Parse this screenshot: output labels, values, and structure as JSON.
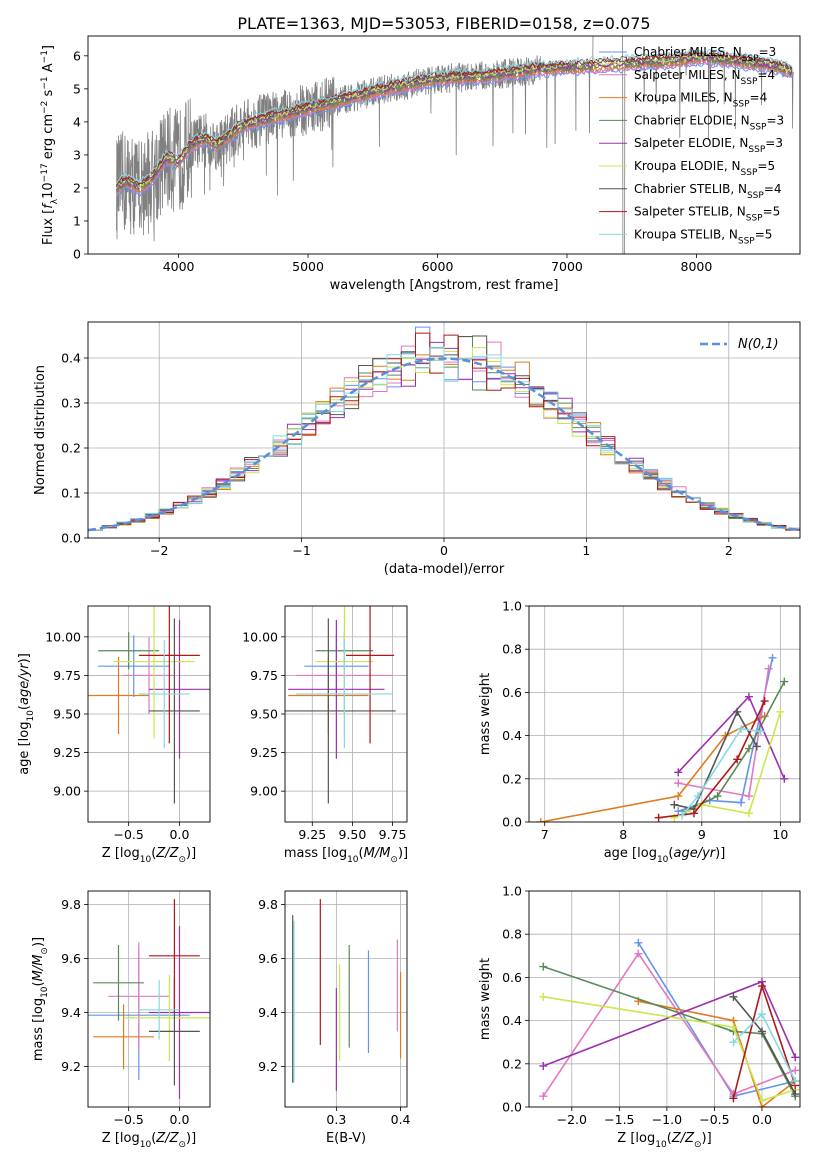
{
  "figure_title": "PLATE=1363, MJD=53053, FIBERID=0158, z=0.075",
  "colors": {
    "Chabrier MILES": "#6495ed",
    "Salpeter MILES": "#e377c2",
    "Kroupa MILES": "#e07b20",
    "Chabrier ELODIE": "#5a8a5a",
    "Salpeter ELODIE": "#9b30b0",
    "Kroupa ELODIE": "#c8e84c",
    "Chabrier STELIB": "#555555",
    "Salpeter STELIB": "#b01818",
    "Kroupa STELIB": "#86d9e0",
    "data": "#808080",
    "gaussian": "#5b8fd9"
  },
  "chart_data": [
    {
      "id": "spectrum",
      "type": "line",
      "title": "PLATE=1363, MJD=53053, FIBERID=0158, z=0.075",
      "xlabel": "wavelength [Angstrom, rest frame]",
      "ylabel": "Flux [f_λ10^-17 erg cm^-2 s^-1 A^-1]",
      "xlim": [
        3300,
        8800
      ],
      "ylim": [
        0,
        6.6
      ],
      "xticks": [
        "4000",
        "5000",
        "6000",
        "7000",
        "8000"
      ],
      "yticks": [
        "0",
        "1",
        "2",
        "3",
        "4",
        "5",
        "6"
      ],
      "grid": false,
      "legend_position": "upper-right",
      "legend": [
        {
          "model": "Chabrier MILES",
          "nssp": "3"
        },
        {
          "model": "Salpeter MILES",
          "nssp": "4"
        },
        {
          "model": "Kroupa MILES",
          "nssp": "4"
        },
        {
          "model": "Chabrier ELODIE",
          "nssp": "3"
        },
        {
          "model": "Salpeter ELODIE",
          "nssp": "3"
        },
        {
          "model": "Kroupa ELODIE",
          "nssp": "5"
        },
        {
          "model": "Chabrier STELIB",
          "nssp": "4"
        },
        {
          "model": "Salpeter STELIB",
          "nssp": "5"
        },
        {
          "model": "Kroupa STELIB",
          "nssp": "5"
        }
      ],
      "continuum_nodes": {
        "x": [
          3520,
          3600,
          3700,
          3800,
          3900,
          4000,
          4100,
          4200,
          4300,
          4400,
          4500,
          4600,
          4700,
          4800,
          4900,
          5000,
          5200,
          5400,
          5600,
          5800,
          6000,
          6200,
          6400,
          6600,
          6800,
          7000,
          7200,
          7400,
          7600,
          7800,
          8000,
          8200,
          8400,
          8600,
          8750
        ],
        "y": [
          2.0,
          2.2,
          2.0,
          2.3,
          2.9,
          2.8,
          3.3,
          3.5,
          3.3,
          3.6,
          3.9,
          4.0,
          4.1,
          4.2,
          4.3,
          4.4,
          4.6,
          4.8,
          5.0,
          5.15,
          5.3,
          5.35,
          5.4,
          5.5,
          5.6,
          5.65,
          5.7,
          5.75,
          5.8,
          5.85,
          5.95,
          5.9,
          5.8,
          5.7,
          5.5
        ]
      }
    },
    {
      "id": "residuals",
      "type": "area",
      "xlabel": "(data-model)/error",
      "ylabel": "Normed distribution",
      "xlim": [
        -2.5,
        2.5
      ],
      "ylim": [
        0,
        0.48
      ],
      "xticks": [
        "−2",
        "−1",
        "0",
        "1",
        "2"
      ],
      "yticks": [
        "0.0",
        "0.1",
        "0.2",
        "0.3",
        "0.4"
      ],
      "grid": true,
      "legend_position": "upper-right",
      "gaussian_label": "N(0,1)",
      "bin_width": 0.1
    },
    {
      "id": "age-vs-Z",
      "type": "scatter",
      "xlabel": "Z [log10(Z/Z⊙)]",
      "ylabel": "age  [log10(age/yr)]",
      "xlim": [
        -0.9,
        0.3
      ],
      "ylim": [
        8.8,
        10.2
      ],
      "xticks": [
        "−0.5",
        "0.0"
      ],
      "yticks": [
        "9.00",
        "9.25",
        "9.50",
        "9.75",
        "10.00"
      ],
      "grid": true,
      "points": [
        {
          "model": "Chabrier MILES",
          "x": -0.45,
          "y": 9.81,
          "xerr": 0.35,
          "yerr": 0.2
        },
        {
          "model": "Salpeter MILES",
          "x": -0.3,
          "y": 9.75,
          "xerr": 0.25,
          "yerr": 0.25
        },
        {
          "model": "Kroupa MILES",
          "x": -0.6,
          "y": 9.62,
          "xerr": 0.3,
          "yerr": 0.25
        },
        {
          "model": "Chabrier ELODIE",
          "x": -0.5,
          "y": 9.91,
          "xerr": 0.3,
          "yerr": 0.12
        },
        {
          "model": "Salpeter ELODIE",
          "x": 0.0,
          "y": 9.66,
          "xerr": 0.3,
          "yerr": 0.45
        },
        {
          "model": "Kroupa ELODIE",
          "x": -0.25,
          "y": 9.84,
          "xerr": 0.4,
          "yerr": 0.5
        },
        {
          "model": "Chabrier STELIB",
          "x": -0.05,
          "y": 9.52,
          "xerr": 0.25,
          "yerr": 0.6
        },
        {
          "model": "Salpeter STELIB",
          "x": -0.1,
          "y": 9.88,
          "xerr": 0.3,
          "yerr": 0.57
        },
        {
          "model": "Kroupa STELIB",
          "x": -0.15,
          "y": 9.63,
          "xerr": 0.25,
          "yerr": 0.35
        }
      ]
    },
    {
      "id": "age-vs-mass",
      "type": "scatter",
      "xlabel": "mass [log10(M/M⊙)]",
      "ylabel": "",
      "xlim": [
        9.08,
        9.84
      ],
      "ylim": [
        8.8,
        10.2
      ],
      "xticks": [
        "9.25",
        "9.50",
        "9.75"
      ],
      "yticks": [
        "9.00",
        "9.25",
        "9.50",
        "9.75",
        "10.00"
      ],
      "grid": true,
      "points": [
        {
          "model": "Chabrier MILES",
          "x": 9.4,
          "y": 9.81,
          "xerr": 0.2,
          "yerr": 0.2
        },
        {
          "model": "Salpeter MILES",
          "x": 9.45,
          "y": 9.75,
          "xerr": 0.3,
          "yerr": 0.25
        },
        {
          "model": "Kroupa MILES",
          "x": 9.35,
          "y": 9.62,
          "xerr": 0.25,
          "yerr": 0.25
        },
        {
          "model": "Chabrier ELODIE",
          "x": 9.45,
          "y": 9.91,
          "xerr": 0.18,
          "yerr": 0.12
        },
        {
          "model": "Salpeter ELODIE",
          "x": 9.4,
          "y": 9.66,
          "xerr": 0.3,
          "yerr": 0.45
        },
        {
          "model": "Kroupa ELODIE",
          "x": 9.45,
          "y": 9.84,
          "xerr": 0.18,
          "yerr": 0.5
        },
        {
          "model": "Chabrier STELIB",
          "x": 9.35,
          "y": 9.52,
          "xerr": 0.42,
          "yerr": 0.6
        },
        {
          "model": "Salpeter STELIB",
          "x": 9.61,
          "y": 9.88,
          "xerr": 0.15,
          "yerr": 0.57
        },
        {
          "model": "Kroupa STELIB",
          "x": 9.45,
          "y": 9.63,
          "xerr": 0.3,
          "yerr": 0.35
        }
      ]
    },
    {
      "id": "mass-weight-vs-age",
      "type": "line",
      "xlabel": "age  [log10(age/yr)]",
      "ylabel": "mass weight",
      "xlim": [
        6.8,
        10.25
      ],
      "ylim": [
        0,
        1.0
      ],
      "xticks": [
        "7",
        "8",
        "9",
        "10"
      ],
      "yticks": [
        "0.0",
        "0.2",
        "0.4",
        "0.6",
        "0.8",
        "1.0"
      ],
      "grid": true,
      "series": [
        {
          "model": "Chabrier MILES",
          "x": [
            8.7,
            9.1,
            9.5,
            9.9
          ],
          "y": [
            0.05,
            0.1,
            0.09,
            0.76
          ]
        },
        {
          "model": "Salpeter MILES",
          "x": [
            8.7,
            9.6,
            9.85
          ],
          "y": [
            0.18,
            0.12,
            0.71
          ]
        },
        {
          "model": "Kroupa MILES",
          "x": [
            6.95,
            8.7,
            9.3,
            9.8
          ],
          "y": [
            0.0,
            0.12,
            0.4,
            0.49
          ]
        },
        {
          "model": "Chabrier ELODIE",
          "x": [
            8.8,
            9.2,
            9.6,
            10.05
          ],
          "y": [
            0.05,
            0.12,
            0.34,
            0.65
          ]
        },
        {
          "model": "Salpeter ELODIE",
          "x": [
            8.7,
            9.6,
            10.05
          ],
          "y": [
            0.23,
            0.58,
            0.2
          ]
        },
        {
          "model": "Kroupa ELODIE",
          "x": [
            8.65,
            9.0,
            9.6,
            10.0
          ],
          "y": [
            0.02,
            0.08,
            0.04,
            0.51
          ]
        },
        {
          "model": "Chabrier STELIB",
          "x": [
            8.65,
            8.9,
            9.45,
            9.7
          ],
          "y": [
            0.08,
            0.06,
            0.51,
            0.35
          ]
        },
        {
          "model": "Salpeter STELIB",
          "x": [
            8.45,
            8.9,
            9.45,
            9.8
          ],
          "y": [
            0.02,
            0.04,
            0.29,
            0.56
          ]
        },
        {
          "model": "Kroupa STELIB",
          "x": [
            8.75,
            8.95,
            9.5,
            9.75
          ],
          "y": [
            0.03,
            0.12,
            0.43,
            0.42
          ]
        }
      ]
    },
    {
      "id": "mass-vs-Z",
      "type": "scatter",
      "xlabel": "Z [log10(Z/Z⊙)]",
      "ylabel": "mass [log10(M/M⊙)]",
      "xlim": [
        -0.9,
        0.3
      ],
      "ylim": [
        9.05,
        9.85
      ],
      "xticks": [
        "−0.5",
        "0.0"
      ],
      "yticks": [
        "9.2",
        "9.4",
        "9.6",
        "9.8"
      ],
      "grid": true,
      "points": [
        {
          "model": "Chabrier MILES",
          "x": -0.4,
          "y": 9.39,
          "xerr": 0.5,
          "yerr": 0.24
        },
        {
          "model": "Salpeter MILES",
          "x": -0.4,
          "y": 9.46,
          "xerr": 0.3,
          "yerr": 0.2
        },
        {
          "model": "Kroupa MILES",
          "x": -0.55,
          "y": 9.31,
          "xerr": 0.3,
          "yerr": 0.12
        },
        {
          "model": "Chabrier ELODIE",
          "x": -0.6,
          "y": 9.51,
          "xerr": 0.25,
          "yerr": 0.14
        },
        {
          "model": "Salpeter ELODIE",
          "x": 0.0,
          "y": 9.4,
          "xerr": 0.3,
          "yerr": 0.32
        },
        {
          "model": "Kroupa ELODIE",
          "x": -0.1,
          "y": 9.38,
          "xerr": 0.45,
          "yerr": 0.16
        },
        {
          "model": "Chabrier STELIB",
          "x": -0.05,
          "y": 9.33,
          "xerr": 0.25,
          "yerr": 0.2
        },
        {
          "model": "Salpeter STELIB",
          "x": -0.05,
          "y": 9.61,
          "xerr": 0.25,
          "yerr": 0.21
        },
        {
          "model": "Kroupa STELIB",
          "x": -0.2,
          "y": 9.41,
          "xerr": 0.2,
          "yerr": 0.11
        }
      ]
    },
    {
      "id": "mass-vs-ebv",
      "type": "scatter",
      "xlabel": "E(B-V)",
      "ylabel": "",
      "xlim": [
        0.22,
        0.41
      ],
      "ylim": [
        9.05,
        9.85
      ],
      "xticks": [
        "0.3",
        "0.4"
      ],
      "yticks": [
        "9.2",
        "9.4",
        "9.6",
        "9.8"
      ],
      "grid": true,
      "points": [
        {
          "model": "Chabrier MILES",
          "y": 9.44,
          "x": 0.35,
          "yerr": 0.19
        },
        {
          "model": "Salpeter MILES",
          "y": 9.5,
          "x": 0.395,
          "yerr": 0.17
        },
        {
          "model": "Kroupa MILES",
          "y": 9.39,
          "x": 0.4,
          "yerr": 0.16
        },
        {
          "model": "Chabrier ELODIE",
          "y": 9.46,
          "x": 0.32,
          "yerr": 0.19
        },
        {
          "model": "Salpeter ELODIE",
          "y": 9.3,
          "x": 0.3,
          "yerr": 0.19
        },
        {
          "model": "Kroupa ELODIE",
          "y": 9.4,
          "x": 0.305,
          "yerr": 0.18
        },
        {
          "model": "Chabrier STELIB",
          "y": 9.45,
          "x": 0.232,
          "yerr": 0.31
        },
        {
          "model": "Salpeter STELIB",
          "y": 9.55,
          "x": 0.275,
          "yerr": 0.27
        },
        {
          "model": "Kroupa STELIB",
          "y": 9.44,
          "x": 0.234,
          "yerr": 0.3
        }
      ]
    },
    {
      "id": "mass-weight-vs-Z",
      "type": "line",
      "xlabel": "Z [log10(Z/Z⊙)]",
      "ylabel": "mass weight",
      "xlim": [
        -2.45,
        0.4
      ],
      "ylim": [
        0,
        1.0
      ],
      "xticks": [
        "−2.0",
        "−1.5",
        "−1.0",
        "−0.5",
        "0.0"
      ],
      "yticks": [
        "0.0",
        "0.2",
        "0.4",
        "0.6",
        "0.8",
        "1.0"
      ],
      "grid": true,
      "series": [
        {
          "model": "Chabrier MILES",
          "x": [
            -1.3,
            -0.3,
            0.35
          ],
          "y": [
            0.76,
            0.05,
            0.12
          ]
        },
        {
          "model": "Salpeter MILES",
          "x": [
            -2.3,
            -1.3,
            -0.3,
            0.35
          ],
          "y": [
            0.05,
            0.71,
            0.06,
            0.17
          ]
        },
        {
          "model": "Kroupa MILES",
          "x": [
            -1.3,
            -0.3,
            0.0,
            0.35
          ],
          "y": [
            0.49,
            0.4,
            0.0,
            0.12
          ]
        },
        {
          "model": "Chabrier ELODIE",
          "x": [
            -2.3,
            -0.3,
            0.0,
            0.35
          ],
          "y": [
            0.65,
            0.35,
            0.34,
            0.05
          ]
        },
        {
          "model": "Salpeter ELODIE",
          "x": [
            -2.3,
            0.0,
            0.35
          ],
          "y": [
            0.19,
            0.58,
            0.23
          ]
        },
        {
          "model": "Kroupa ELODIE",
          "x": [
            -2.3,
            -0.3,
            0.0,
            0.35
          ],
          "y": [
            0.51,
            0.37,
            0.03,
            0.08
          ]
        },
        {
          "model": "Chabrier STELIB",
          "x": [
            -0.3,
            0.0,
            0.35
          ],
          "y": [
            0.51,
            0.35,
            0.06
          ]
        },
        {
          "model": "Salpeter STELIB",
          "x": [
            -0.3,
            0.0,
            0.35
          ],
          "y": [
            0.04,
            0.56,
            0.1
          ]
        },
        {
          "model": "Kroupa STELIB",
          "x": [
            -0.3,
            0.0,
            0.35
          ],
          "y": [
            0.3,
            0.43,
            0.12
          ]
        }
      ]
    }
  ]
}
